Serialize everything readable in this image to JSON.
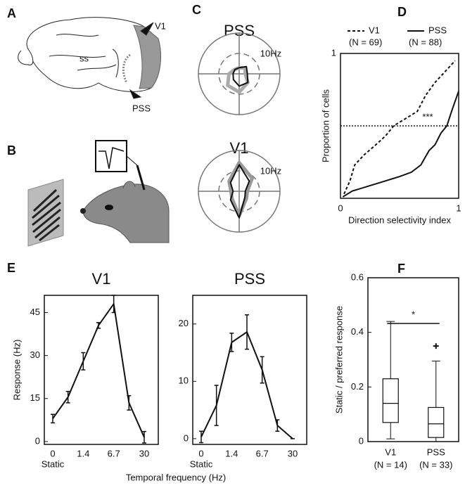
{
  "panels": [
    "A",
    "B",
    "C",
    "D",
    "E",
    "F"
  ],
  "brain_labels": [
    "V1",
    "ss",
    "PSS"
  ],
  "chart_data": [
    {
      "type": "polar",
      "title": "PSS",
      "rlim": [
        0,
        20
      ],
      "rticks": [
        {
          "value": 10,
          "label": "10Hz"
        }
      ],
      "directions": [
        0,
        45,
        90,
        135,
        180,
        225,
        270,
        315
      ],
      "series": [
        {
          "color": "#aaaaaa",
          "values": [
            3,
            4,
            3,
            3,
            5,
            8,
            9,
            6
          ]
        },
        {
          "color": "#111111",
          "values": [
            4,
            5,
            3,
            3,
            3,
            4,
            6,
            6
          ]
        }
      ]
    },
    {
      "type": "polar",
      "title": "V1",
      "rlim": [
        0,
        20
      ],
      "rticks": [
        {
          "value": 10,
          "label": "10Hz"
        }
      ],
      "directions": [
        0,
        45,
        90,
        135,
        180,
        225,
        270,
        315
      ],
      "series": [
        {
          "color": "#999999",
          "values": [
            4,
            9,
            14,
            7,
            4,
            5,
            12,
            5
          ]
        },
        {
          "color": "#111111",
          "values": [
            3,
            7,
            13,
            6,
            3,
            6,
            13,
            4
          ]
        }
      ]
    },
    {
      "type": "line",
      "xlabel": "Direction selectivity index",
      "ylabel": "Proportion of cells",
      "xlim": [
        0,
        1
      ],
      "ylim": [
        0,
        1
      ],
      "xticks": [
        0,
        1
      ],
      "yticks": [
        1
      ],
      "hline": 0.5,
      "annotation": "***",
      "series": [
        {
          "name": "V1",
          "note": "(N = 69)",
          "style": "dashed",
          "color": "#111111",
          "x": [
            0.03,
            0.08,
            0.12,
            0.2,
            0.3,
            0.38,
            0.45,
            0.55,
            0.65,
            0.72,
            0.8,
            0.88,
            0.97
          ],
          "values": [
            0.03,
            0.12,
            0.23,
            0.3,
            0.37,
            0.43,
            0.5,
            0.55,
            0.6,
            0.71,
            0.8,
            0.87,
            0.95
          ]
        },
        {
          "name": "PSS",
          "note": "(N = 88)",
          "style": "solid",
          "color": "#111111",
          "x": [
            0.02,
            0.1,
            0.3,
            0.5,
            0.6,
            0.68,
            0.75,
            0.8,
            0.85,
            0.9,
            0.94,
            0.97,
            1.0
          ],
          "values": [
            0.01,
            0.05,
            0.1,
            0.15,
            0.18,
            0.23,
            0.33,
            0.37,
            0.45,
            0.5,
            0.6,
            0.67,
            0.74
          ]
        }
      ]
    },
    {
      "type": "errorline",
      "title": "V1",
      "ylabel": "Response (Hz)",
      "xlabel": "Temporal frequency (Hz)",
      "static_label": "Static",
      "categories": [
        "0",
        null,
        "1.4",
        null,
        "6.7",
        null,
        "30"
      ],
      "ylim": [
        -1,
        51
      ],
      "yticks": [
        0,
        15,
        30,
        45
      ],
      "values": [
        8,
        15.5,
        28,
        40.5,
        48,
        13.5,
        1.5
      ],
      "errors": [
        1.5,
        2,
        3,
        1,
        3,
        2.5,
        2
      ]
    },
    {
      "type": "errorline",
      "title": "PSS",
      "static_label": "Static",
      "categories": [
        "0",
        null,
        "1.4",
        null,
        "6.7",
        null,
        "30"
      ],
      "ylim": [
        -1,
        25
      ],
      "yticks": [
        0,
        10,
        20
      ],
      "values": [
        0.3,
        5.8,
        16.8,
        18.6,
        12,
        2.3,
        0
      ],
      "errors": [
        1,
        3.5,
        1.6,
        3,
        2.3,
        1,
        0
      ]
    },
    {
      "type": "box",
      "ylabel": "Static / preferred response",
      "ylim": [
        0,
        0.6
      ],
      "yticks": [
        0,
        0.2,
        0.4,
        0.6
      ],
      "categories": [
        "V1",
        "PSS"
      ],
      "notes": [
        "(N = 14)",
        "(N = 33)"
      ],
      "significance": "*",
      "boxes": [
        {
          "min": 0.01,
          "q1": 0.07,
          "median": 0.14,
          "q3": 0.23,
          "max": 0.44,
          "outliers": []
        },
        {
          "min": 0.0,
          "q1": 0.015,
          "median": 0.065,
          "q3": 0.125,
          "max": 0.295,
          "outliers": [
            0.35
          ]
        }
      ]
    }
  ]
}
